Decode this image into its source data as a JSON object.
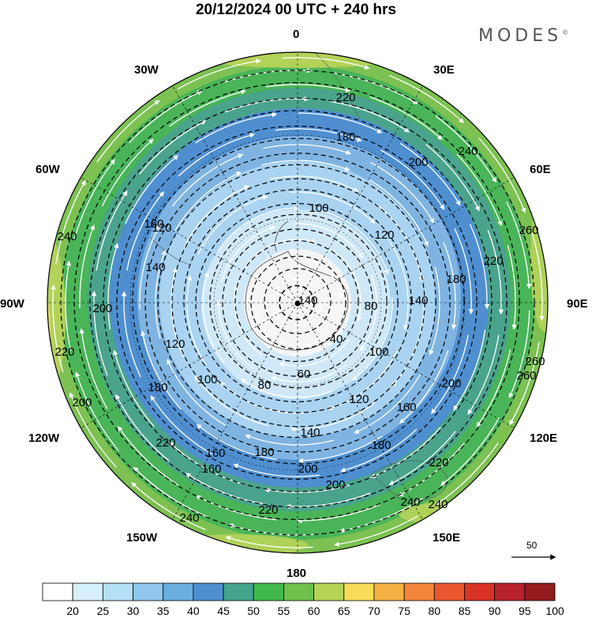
{
  "title": "20/12/2024  00 UTC  + 240 hrs",
  "brand": "MODES",
  "brand_mark": "©",
  "longitude_labels": {
    "n0": "0",
    "e30": "30E",
    "e60": "60E",
    "e90": "90E",
    "e120": "120E",
    "e150": "150E",
    "s180": "180",
    "w150": "150W",
    "w120": "120W",
    "w90": "90W",
    "w60": "60W",
    "w30": "30W"
  },
  "colorbar": {
    "ticks": [
      "20",
      "25",
      "30",
      "35",
      "40",
      "45",
      "50",
      "55",
      "60",
      "65",
      "70",
      "75",
      "80",
      "85",
      "90",
      "95",
      "100"
    ],
    "colors": [
      "#ffffff",
      "#d6f1fd",
      "#b5e0f7",
      "#8fc8ee",
      "#6aaee0",
      "#4d8fcf",
      "#43a58c",
      "#41b74e",
      "#6fc04c",
      "#b5d455",
      "#f7dc5a",
      "#f4b243",
      "#f2853a",
      "#e9572f",
      "#d93326",
      "#b8222b",
      "#941c1c"
    ]
  },
  "wind_colors": {
    "pole": "#f5f5f5",
    "light_blue": "#cfe8f8",
    "mid_blue": "#a9d3f1",
    "blue": "#7fb4e2",
    "deep_blue": "#4f8fd0",
    "teal": "#4aa38c",
    "green": "#49b458",
    "light_green": "#7cc152",
    "yellow_green": "#b9d45a",
    "yellow": "#f2dc62"
  },
  "contour_labels": [
    {
      "text": "220"
    },
    {
      "text": "180"
    },
    {
      "text": "200"
    },
    {
      "text": "240"
    },
    {
      "text": "260"
    },
    {
      "text": "100"
    },
    {
      "text": "120"
    },
    {
      "text": "160"
    },
    {
      "text": "140"
    },
    {
      "text": "220"
    },
    {
      "text": "180"
    },
    {
      "text": "80"
    },
    {
      "text": "140"
    },
    {
      "text": "40"
    },
    {
      "text": "60"
    },
    {
      "text": "100"
    },
    {
      "text": "240"
    },
    {
      "text": "200"
    },
    {
      "text": "120"
    },
    {
      "text": "260"
    },
    {
      "text": "100"
    },
    {
      "text": "80"
    },
    {
      "text": "120"
    },
    {
      "text": "160"
    },
    {
      "text": "200"
    },
    {
      "text": "180"
    },
    {
      "text": "140"
    },
    {
      "text": "180"
    },
    {
      "text": "160"
    },
    {
      "text": "180"
    },
    {
      "text": "220"
    },
    {
      "text": "200"
    },
    {
      "text": "220"
    },
    {
      "text": "240"
    },
    {
      "text": "240"
    },
    {
      "text": "220"
    },
    {
      "text": "200"
    },
    {
      "text": "160"
    },
    {
      "text": "140"
    },
    {
      "text": "120"
    },
    {
      "text": "200"
    },
    {
      "text": "220"
    },
    {
      "text": "240"
    },
    {
      "text": "260"
    }
  ],
  "reference_vector": "50"
}
